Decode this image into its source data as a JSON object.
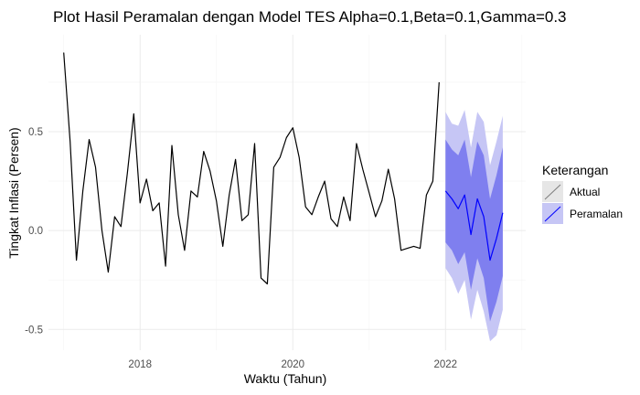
{
  "chart_data": {
    "type": "line",
    "title": "Plot Hasil Peramalan dengan Model TES Alpha=0.1,Beta=0.1,Gamma=0.3",
    "xlabel": "Waktu (Tahun)",
    "ylabel": "Tingkat Inflasi (Persen)",
    "xlim": [
      2016.8,
      2023.05
    ],
    "ylim": [
      -0.605,
      0.99
    ],
    "x_ticks": [
      2018,
      2020,
      2022
    ],
    "x_tick_labels": [
      "2018",
      "2020",
      "2022"
    ],
    "y_ticks": [
      -0.5,
      0.0,
      0.5
    ],
    "y_tick_labels": [
      "-0.5",
      "0.0",
      "0.5"
    ],
    "grid": true,
    "legend": {
      "title": "Keterangan",
      "position": "right",
      "entries": [
        "Aktual",
        "Peramalan"
      ]
    },
    "colors": {
      "actual": "#000000",
      "forecast": "#0000ff",
      "band80": "#7f7fef",
      "band95": "#c6c6f5"
    },
    "series": [
      {
        "name": "Aktual",
        "x": [
          2017.0,
          2017.0833,
          2017.1667,
          2017.25,
          2017.3333,
          2017.4167,
          2017.5,
          2017.5833,
          2017.6667,
          2017.75,
          2017.8333,
          2017.9167,
          2018.0,
          2018.0833,
          2018.1667,
          2018.25,
          2018.3333,
          2018.4167,
          2018.5,
          2018.5833,
          2018.6667,
          2018.75,
          2018.8333,
          2018.9167,
          2019.0,
          2019.0833,
          2019.1667,
          2019.25,
          2019.3333,
          2019.4167,
          2019.5,
          2019.5833,
          2019.6667,
          2019.75,
          2019.8333,
          2019.9167,
          2020.0,
          2020.0833,
          2020.1667,
          2020.25,
          2020.3333,
          2020.4167,
          2020.5,
          2020.5833,
          2020.6667,
          2020.75,
          2020.8333,
          2020.9167,
          2021.0,
          2021.0833,
          2021.1667,
          2021.25,
          2021.3333,
          2021.4167,
          2021.5,
          2021.5833,
          2021.6667,
          2021.75,
          2021.8333,
          2021.9167
        ],
        "values": [
          0.9,
          0.45,
          -0.15,
          0.2,
          0.46,
          0.32,
          0.0,
          -0.21,
          0.07,
          0.02,
          0.29,
          0.59,
          0.14,
          0.26,
          0.1,
          0.14,
          -0.18,
          0.43,
          0.08,
          -0.1,
          0.2,
          0.17,
          0.4,
          0.3,
          0.15,
          -0.08,
          0.18,
          0.36,
          0.05,
          0.08,
          0.44,
          -0.24,
          -0.27,
          0.32,
          0.37,
          0.47,
          0.52,
          0.37,
          0.12,
          0.08,
          0.17,
          0.25,
          0.06,
          0.02,
          0.17,
          0.05,
          0.44,
          0.31,
          0.19,
          0.07,
          0.15,
          0.31,
          0.16,
          -0.1,
          -0.09,
          -0.08,
          -0.09,
          0.18,
          0.25,
          0.75
        ]
      },
      {
        "name": "Peramalan",
        "x": [
          2022.0,
          2022.0833,
          2022.1667,
          2022.25,
          2022.3333,
          2022.4167,
          2022.5,
          2022.5833,
          2022.6667,
          2022.75
        ],
        "values": [
          0.2,
          0.16,
          0.11,
          0.18,
          -0.02,
          0.16,
          0.07,
          -0.15,
          -0.04,
          0.09
        ],
        "lower80": [
          -0.06,
          -0.1,
          -0.17,
          -0.11,
          -0.3,
          -0.14,
          -0.24,
          -0.46,
          -0.36,
          -0.23
        ],
        "upper80": [
          0.46,
          0.41,
          0.38,
          0.46,
          0.27,
          0.45,
          0.38,
          0.16,
          0.28,
          0.42
        ],
        "lower95": [
          -0.19,
          -0.24,
          -0.32,
          -0.25,
          -0.45,
          -0.3,
          -0.41,
          -0.56,
          -0.53,
          -0.4
        ],
        "upper95": [
          0.6,
          0.54,
          0.53,
          0.61,
          0.42,
          0.6,
          0.55,
          0.33,
          0.45,
          0.58
        ]
      }
    ]
  }
}
